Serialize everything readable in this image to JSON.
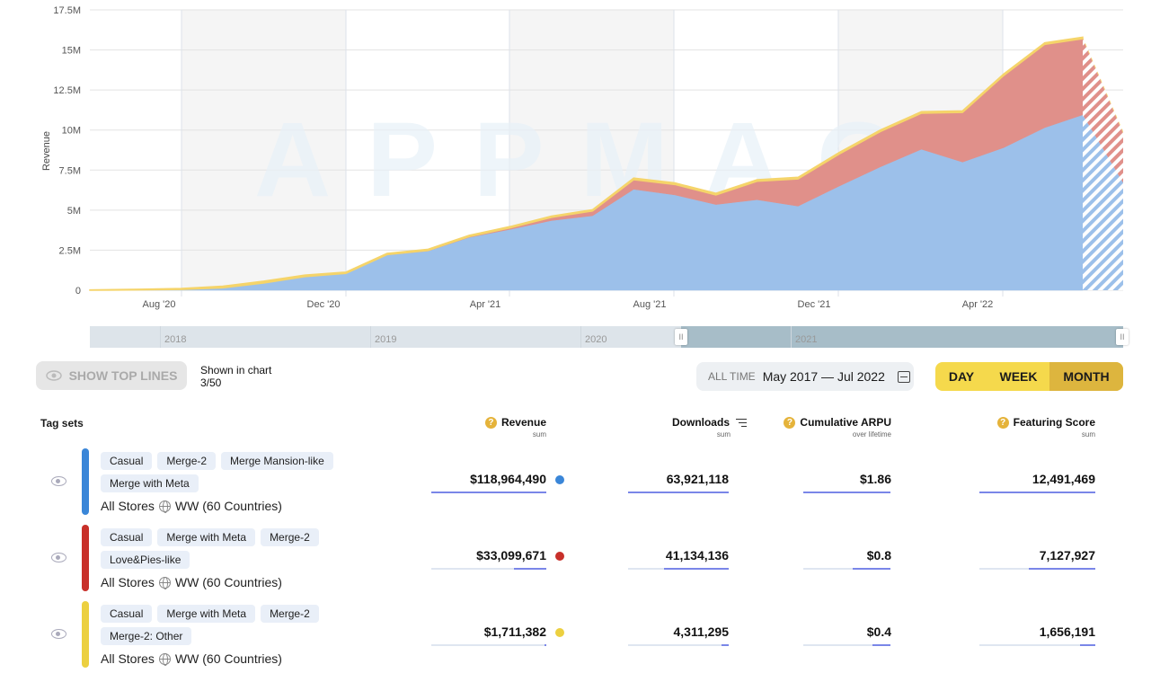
{
  "chart_data": {
    "type": "area",
    "stacked": true,
    "title": "",
    "xlabel": "",
    "ylabel": "Revenue",
    "ylim": [
      0,
      17500000
    ],
    "yticks": [
      "0",
      "2.5M",
      "5M",
      "7.5M",
      "10M",
      "12.5M",
      "15M",
      "17.5M"
    ],
    "ytick_values": [
      0,
      2500000,
      5000000,
      7500000,
      10000000,
      12500000,
      15000000,
      17500000
    ],
    "x": [
      "Jun '20",
      "Jul '20",
      "Aug '20",
      "Sep '20",
      "Oct '20",
      "Nov '20",
      "Dec '20",
      "Jan '21",
      "Feb '21",
      "Mar '21",
      "Apr '21",
      "May '21",
      "Jun '21",
      "Jul '21",
      "Aug '21",
      "Sep '21",
      "Oct '21",
      "Nov '21",
      "Dec '21",
      "Jan '22",
      "Feb '22",
      "Mar '22",
      "Apr '22",
      "May '22",
      "Jun '22",
      "Jul '22"
    ],
    "xtick_labels": [
      "Aug '20",
      "Dec '20",
      "Apr '21",
      "Aug '21",
      "Dec '21",
      "Apr '22"
    ],
    "partial_period_from": "Jun '22",
    "grid": true,
    "watermark": "APPMAGIC",
    "series": [
      {
        "name": "Casual, Merge-2, Merge Mansion-like, Merge with Meta",
        "color": "#9cc0ea",
        "values": [
          0.0,
          0.02,
          0.05,
          0.15,
          0.45,
          0.85,
          1.05,
          2.2,
          2.45,
          3.3,
          3.8,
          4.35,
          4.65,
          6.3,
          5.95,
          5.35,
          5.65,
          5.25,
          6.5,
          7.7,
          8.8,
          8.0,
          8.9,
          10.15,
          10.95,
          6.7
        ]
      },
      {
        "name": "Casual, Merge with Meta, Merge-2, Love&Pies-like",
        "color": "#e0908a",
        "values": [
          0.0,
          0.0,
          0.0,
          0.0,
          0.0,
          0.0,
          0.0,
          0.02,
          0.03,
          0.05,
          0.1,
          0.2,
          0.3,
          0.6,
          0.65,
          0.6,
          1.15,
          1.7,
          2.0,
          2.2,
          2.25,
          3.1,
          4.5,
          5.2,
          4.75,
          3.1
        ]
      },
      {
        "name": "Casual, Merge with Meta, Merge-2, Merge-2: Other",
        "color": "#f5d46a",
        "values": [
          0.02,
          0.04,
          0.06,
          0.1,
          0.12,
          0.1,
          0.08,
          0.08,
          0.08,
          0.08,
          0.08,
          0.08,
          0.08,
          0.1,
          0.1,
          0.1,
          0.1,
          0.1,
          0.1,
          0.1,
          0.1,
          0.1,
          0.1,
          0.1,
          0.1,
          0.1
        ]
      }
    ],
    "units_note": "values in millions USD"
  },
  "navigator": {
    "years": [
      "2018",
      "2019",
      "2020",
      "2021"
    ],
    "handle_glyph": "II"
  },
  "controls": {
    "show_top_lines_label": "SHOW TOP LINES",
    "shown_in_chart_label": "Shown in chart",
    "shown_in_chart_count": "3/50",
    "date_preset": "ALL TIME",
    "date_range": "May 2017 — Jul 2022",
    "periods": [
      {
        "label": "DAY",
        "active": false
      },
      {
        "label": "WEEK",
        "active": false
      },
      {
        "label": "MONTH",
        "active": true
      }
    ]
  },
  "table": {
    "tag_sets_header": "Tag sets",
    "columns": [
      {
        "title": "Revenue",
        "sub": "sum",
        "help": true
      },
      {
        "title": "Downloads",
        "sub": "sum",
        "sort": true
      },
      {
        "title": "Cumulative ARPU",
        "sub": "over lifetime",
        "help": true
      },
      {
        "title": "Featuring Score",
        "sub": "sum",
        "help": true
      }
    ],
    "rows": [
      {
        "color": "#3a86d8",
        "dot": "#3a86d8",
        "tags": [
          "Casual",
          "Merge-2",
          "Merge Mansion-like",
          "Merge with Meta"
        ],
        "store": "All Stores",
        "region": "WW (60 Countries)",
        "revenue": "$118,964,490",
        "downloads": "63,921,118",
        "arpu": "$1.86",
        "featuring": "12,491,469",
        "fills": [
          1.0,
          1.0,
          1.0,
          1.0
        ]
      },
      {
        "color": "#c8302a",
        "dot": "#c8302a",
        "tags": [
          "Casual",
          "Merge with Meta",
          "Merge-2",
          "Love&Pies-like"
        ],
        "store": "All Stores",
        "region": "WW (60 Countries)",
        "revenue": "$33,099,671",
        "downloads": "41,134,136",
        "arpu": "$0.8",
        "featuring": "7,127,927",
        "fills": [
          0.28,
          0.64,
          0.43,
          0.57
        ]
      },
      {
        "color": "#ecd040",
        "dot": "#ecd040",
        "tags": [
          "Casual",
          "Merge with Meta",
          "Merge-2",
          "Merge-2: Other"
        ],
        "store": "All Stores",
        "region": "WW (60 Countries)",
        "revenue": "$1,711,382",
        "downloads": "4,311,295",
        "arpu": "$0.4",
        "featuring": "1,656,191",
        "fills": [
          0.015,
          0.07,
          0.21,
          0.13
        ]
      }
    ]
  }
}
